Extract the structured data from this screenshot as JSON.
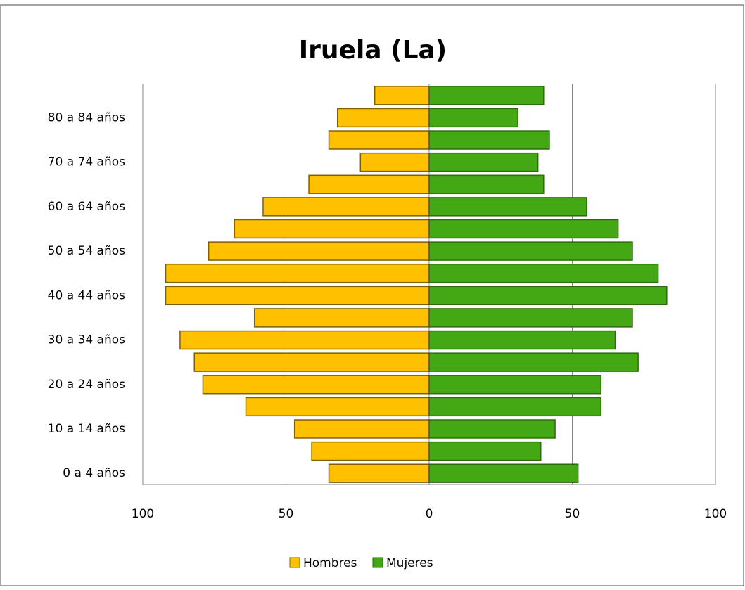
{
  "chart_data": {
    "type": "bar",
    "orientation": "horizontal",
    "title": "Iruela (La)",
    "categories": [
      "0 a 4 años",
      null,
      "10 a 14 años",
      null,
      "20 a 24 años",
      null,
      "30 a 34 años",
      null,
      "40 a 44 años",
      null,
      "50 a 54 años",
      null,
      "60 a 64 años",
      null,
      "70 a 74 años",
      null,
      "80 a 84 años",
      null
    ],
    "series": [
      {
        "name": "Hombres",
        "color": "#ffc000",
        "values": [
          -35,
          -41,
          -47,
          -64,
          -79,
          -82,
          -87,
          -61,
          -92,
          -92,
          -77,
          -68,
          -58,
          -42,
          -24,
          -35,
          -32,
          -19
        ]
      },
      {
        "name": "Mujeres",
        "color": "#44a814",
        "values": [
          52,
          39,
          44,
          60,
          60,
          73,
          65,
          71,
          83,
          80,
          71,
          66,
          55,
          40,
          38,
          42,
          31,
          40
        ]
      }
    ],
    "xlim": [
      -100,
      100
    ],
    "xticks": [
      {
        "value": -100,
        "label": "100"
      },
      {
        "value": -50,
        "label": "50"
      },
      0,
      50,
      100
    ],
    "grid": true,
    "legend": "bottom"
  }
}
